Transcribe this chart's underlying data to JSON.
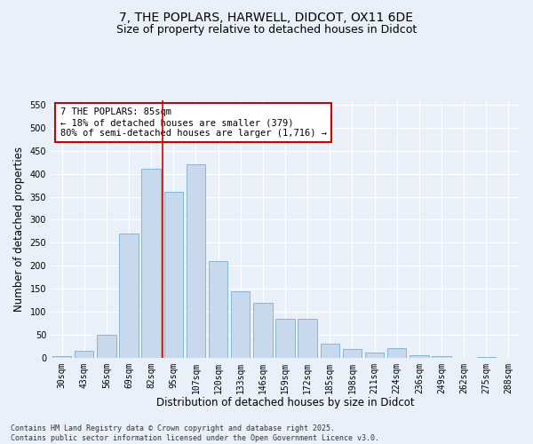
{
  "title_line1": "7, THE POPLARS, HARWELL, DIDCOT, OX11 6DE",
  "title_line2": "Size of property relative to detached houses in Didcot",
  "xlabel": "Distribution of detached houses by size in Didcot",
  "ylabel": "Number of detached properties",
  "bar_color": "#c8d9ee",
  "bar_edge_color": "#7aafd4",
  "categories": [
    "30sqm",
    "43sqm",
    "56sqm",
    "69sqm",
    "82sqm",
    "95sqm",
    "107sqm",
    "120sqm",
    "133sqm",
    "146sqm",
    "159sqm",
    "172sqm",
    "185sqm",
    "198sqm",
    "211sqm",
    "224sqm",
    "236sqm",
    "249sqm",
    "262sqm",
    "275sqm",
    "288sqm"
  ],
  "values": [
    3,
    15,
    50,
    270,
    410,
    360,
    420,
    210,
    145,
    120,
    85,
    85,
    30,
    18,
    12,
    20,
    5,
    3,
    0,
    2,
    0
  ],
  "ylim": [
    0,
    560
  ],
  "yticks": [
    0,
    50,
    100,
    150,
    200,
    250,
    300,
    350,
    400,
    450,
    500,
    550
  ],
  "vline_position": 4.5,
  "vline_color": "#cc0000",
  "annotation_text": "7 THE POPLARS: 85sqm\n← 18% of detached houses are smaller (379)\n80% of semi-detached houses are larger (1,716) →",
  "annotation_box_color": "#ffffff",
  "annotation_box_edge": "#cc0000",
  "bg_color": "#eaf0f9",
  "plot_bg_color": "#eaf0f9",
  "footer_line1": "Contains HM Land Registry data © Crown copyright and database right 2025.",
  "footer_line2": "Contains public sector information licensed under the Open Government Licence v3.0.",
  "title_fontsize": 10,
  "subtitle_fontsize": 9,
  "axis_label_fontsize": 8.5,
  "tick_fontsize": 7,
  "annotation_fontsize": 7.5,
  "footer_fontsize": 6
}
